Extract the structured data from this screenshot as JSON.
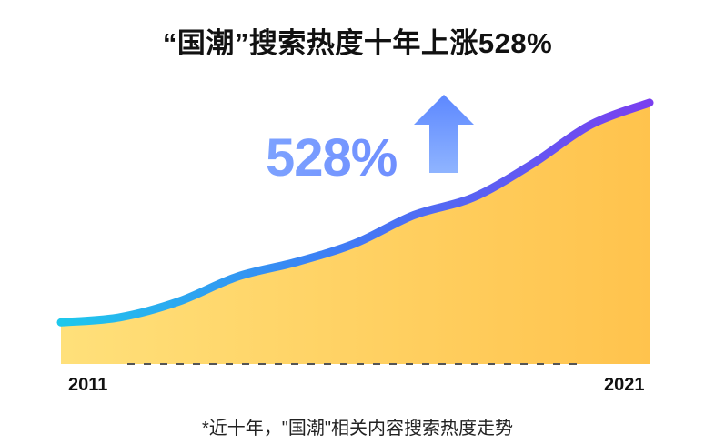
{
  "title": "“国潮”搜索热度十年上涨528%",
  "annotation": "528%",
  "footnote": "*近十年，\"国潮\"相关内容搜索热度走势",
  "colors": {
    "highlight": "#ffe26a",
    "area_start": "#ffe07a",
    "area_end": "#ffc34d",
    "line_start": "#1ec8ec",
    "line_end": "#7a3ff0",
    "arrow": "#6f95ff"
  },
  "chart_data": {
    "type": "area",
    "x": [
      2011,
      2012,
      2013,
      2014,
      2015,
      2016,
      2017,
      2018,
      2019,
      2020,
      2021
    ],
    "values": [
      100,
      112,
      150,
      210,
      245,
      290,
      358,
      400,
      480,
      575,
      628
    ],
    "ylim": [
      0,
      700
    ],
    "tick_labels": [
      "2011",
      "2021"
    ],
    "xlabel": "",
    "ylabel": "",
    "title": "",
    "grid": false,
    "legend": "none"
  }
}
